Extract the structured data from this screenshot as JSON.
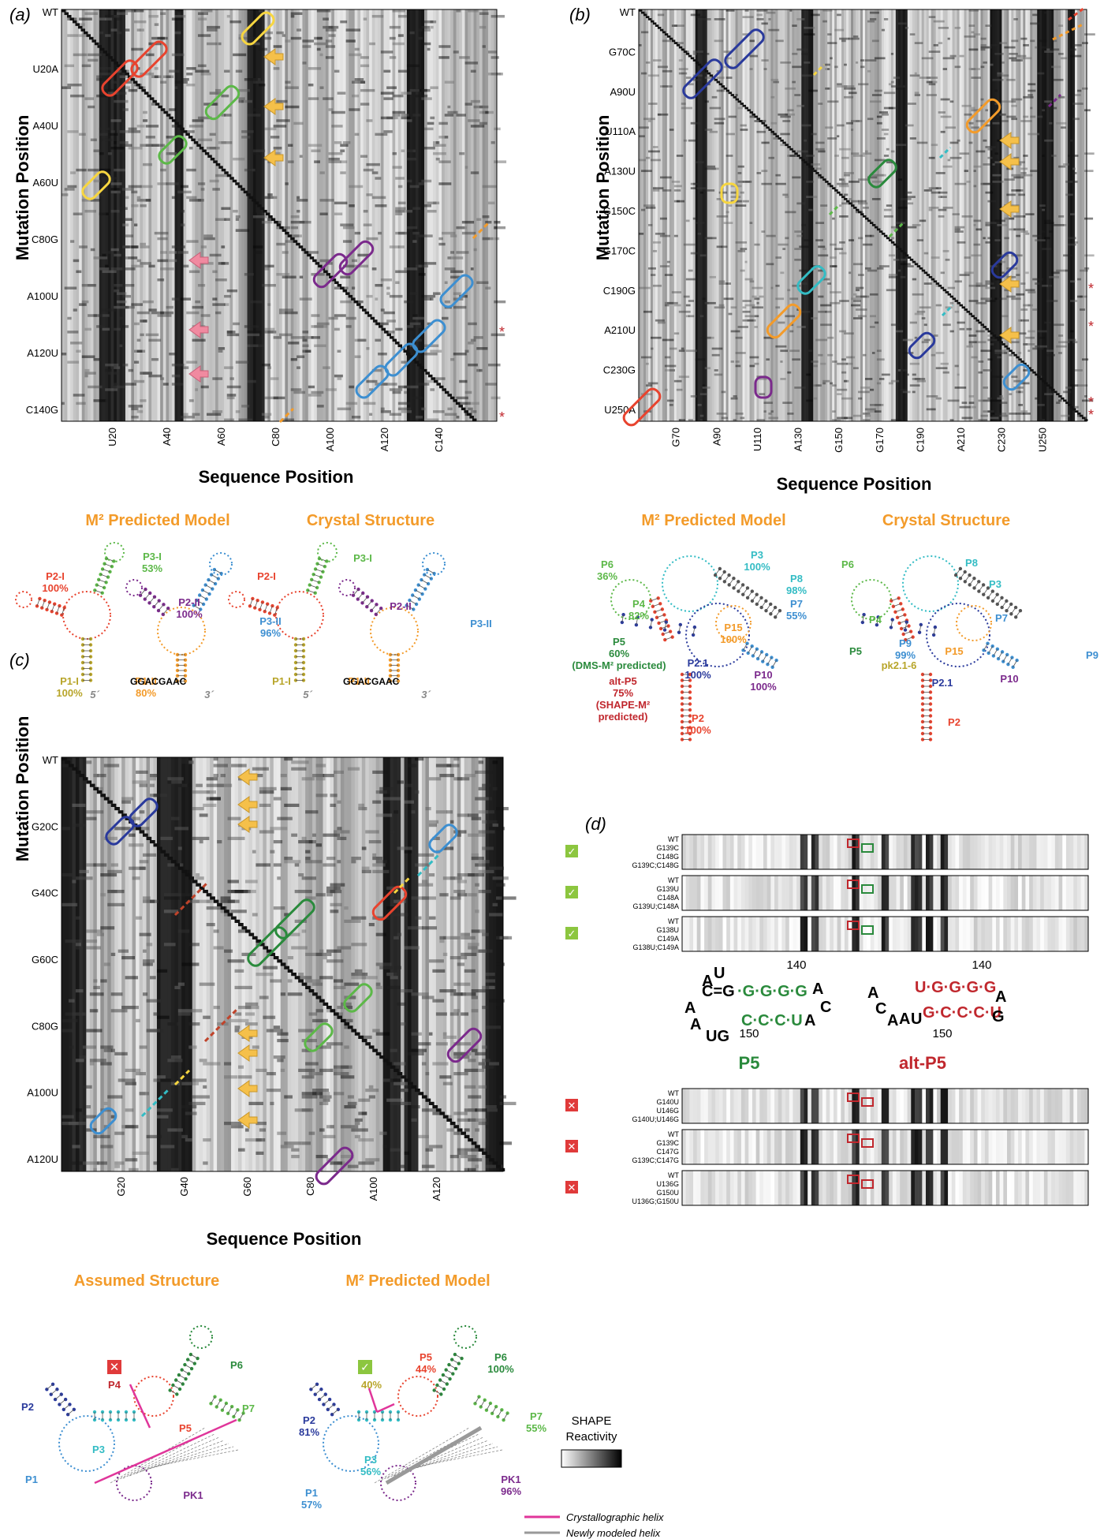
{
  "panel_a": {
    "label": "(a)",
    "y_title": "Mutation Position",
    "x_title": "Sequence Position",
    "y_ticks": [
      "WT",
      "U20A",
      "A40U",
      "A60U",
      "C80G",
      "A100U",
      "A120U",
      "C140G"
    ],
    "x_ticks": [
      "U20",
      "A40",
      "A60",
      "C80",
      "A100",
      "A120",
      "C140"
    ],
    "model_title": "M² Predicted Model",
    "crystal_title": "Crystal Structure",
    "model_helices": [
      {
        "name": "P2-I",
        "pct": "100%",
        "color": "#e8432e"
      },
      {
        "name": "P3-I",
        "pct": "53%",
        "color": "#5cb848"
      },
      {
        "name": "P2-II",
        "pct": "100%",
        "color": "#7b2a8c"
      },
      {
        "name": "P3-II",
        "pct": "96%",
        "color": "#3d8fd1"
      },
      {
        "name": "P1-I",
        "pct": "100%",
        "color": "#b8a52a"
      },
      {
        "name": "P1-II",
        "pct": "80%",
        "color": "#f39b2a"
      }
    ],
    "crystal_helices": [
      "P2-I",
      "P3-I",
      "P2-II",
      "P3-II",
      "P1-I",
      "P1-II"
    ],
    "tail_seq": "GGACGAAC",
    "five": "5´",
    "three": "3´",
    "nums": [
      "20",
      "40",
      "60",
      "80",
      "100",
      "120",
      "140"
    ]
  },
  "panel_b": {
    "label": "(b)",
    "y_title": "Mutation Position",
    "x_title": "Sequence Position",
    "y_ticks": [
      "WT",
      "G70C",
      "A90U",
      "U110A",
      "A130U",
      "G150C",
      "G170C",
      "C190G",
      "A210U",
      "C230G",
      "U250A"
    ],
    "x_ticks": [
      "G70",
      "A90",
      "U110",
      "A130",
      "G150",
      "G170",
      "C190",
      "A210",
      "C230",
      "U250"
    ],
    "model_title": "M² Predicted Model",
    "crystal_title": "Crystal Structure",
    "model_helices": [
      {
        "name": "P6",
        "pct": "36%",
        "color": "#5cb848"
      },
      {
        "name": "P3",
        "pct": "100%",
        "color": "#33bcc4"
      },
      {
        "name": "P8",
        "pct": "98%",
        "color": "#33bcc4"
      },
      {
        "name": "P4",
        "pct": "82%",
        "color": "#5cb848"
      },
      {
        "name": "P7",
        "pct": "55%",
        "color": "#3d8fd1"
      },
      {
        "name": "P15",
        "pct": "100%",
        "color": "#f39b2a"
      },
      {
        "name": "P9",
        "pct": "99%",
        "color": "#3d8fd1"
      },
      {
        "name": "P2.1",
        "pct": "100%",
        "color": "#2a3a9c"
      },
      {
        "name": "P10",
        "pct": "100%",
        "color": "#7b2a8c"
      },
      {
        "name": "P2",
        "pct": "100%",
        "color": "#e8432e"
      }
    ],
    "p5": {
      "name": "P5",
      "pct": "60%",
      "note": "(DMS-M² predicted)"
    },
    "altp5": {
      "name": "alt-P5",
      "pct": "75%",
      "note1": "(SHAPE-M²",
      "note2": "predicted)"
    },
    "crystal_helices": [
      "P6",
      "P3",
      "P8",
      "P4",
      "P7",
      "P15",
      "P9",
      "P2.1",
      "P10",
      "P2",
      "P5"
    ],
    "pk": "pk2.1-6",
    "nums": [
      "170",
      "190",
      "130",
      "150",
      "210",
      "110",
      "230",
      "90",
      "70",
      "250"
    ]
  },
  "panel_c": {
    "label": "(c)",
    "y_title": "Mutation Position",
    "x_title": "Sequence Position",
    "y_ticks": [
      "WT",
      "G20C",
      "G40C",
      "G60C",
      "C80G",
      "A100U",
      "A120U"
    ],
    "x_ticks": [
      "G20",
      "G40",
      "G60",
      "C80",
      "A100",
      "A120"
    ],
    "assumed_title": "Assumed Structure",
    "model_title": "M² Predicted Model",
    "assumed_helices": [
      "P4",
      "P6",
      "P7",
      "P2",
      "P5",
      "P3",
      "P1",
      "PK1"
    ],
    "model_helices": [
      {
        "name": "P5",
        "pct": "44%",
        "color": "#e8432e"
      },
      {
        "name": "P6",
        "pct": "100%",
        "color": "#2a8a3c"
      },
      {
        "name": "P7",
        "pct": "55%",
        "color": "#5cb848"
      },
      {
        "name": "P2",
        "pct": "81%",
        "color": "#2a3a9c"
      },
      {
        "name": "P3",
        "pct": "56%",
        "color": "#33bcc4"
      },
      {
        "name": "P1",
        "pct": "57%",
        "color": "#3d8fd1"
      },
      {
        "name": "PK1",
        "pct": "96%",
        "color": "#7b2a8c"
      }
    ],
    "p4_pct": "40%",
    "legend_crystal": "Crystallographic helix",
    "legend_new": "Newly modeled helix",
    "nums": [
      "20",
      "40",
      "60",
      "80",
      "100",
      "120"
    ]
  },
  "shape_legend": {
    "line1": "SHAPE",
    "line2": "Reactivity"
  },
  "panel_d": {
    "label": "(d)",
    "groups_ok": [
      [
        "WT",
        "G139C",
        "C148G",
        "G139C;C148G"
      ],
      [
        "WT",
        "G139U",
        "C148A",
        "G139U;C148A"
      ],
      [
        "WT",
        "G138U",
        "C149A",
        "G138U;C149A"
      ]
    ],
    "groups_bad": [
      [
        "WT",
        "G140U",
        "U146G",
        "G140U;U146G"
      ],
      [
        "WT",
        "G139C",
        "C147G",
        "G139C;C147G"
      ],
      [
        "WT",
        "U136G",
        "G150U",
        "U136G;G150U"
      ]
    ],
    "p5_label": "P5",
    "altp5_label": "alt-P5",
    "n140": "140",
    "n150": "150"
  }
}
